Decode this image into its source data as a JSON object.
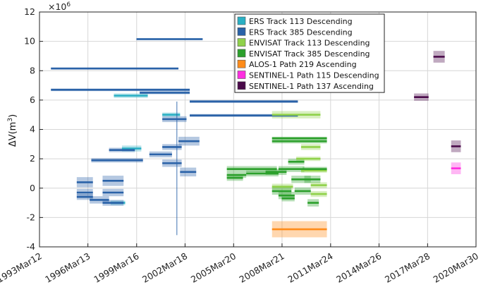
{
  "chart_data": {
    "type": "interval-scatter",
    "ylabel_main": "ΔV(m",
    "ylabel_sup": "3",
    "ylabel_close": ")",
    "exponent_prefix": "×10",
    "exponent_power": "6",
    "ylim": [
      -4000000,
      12000000
    ],
    "y_ticks": [
      -4000000,
      -2000000,
      0,
      2000000,
      4000000,
      6000000,
      8000000,
      10000000,
      12000000
    ],
    "y_tick_labels": [
      "-4",
      "-2",
      "0",
      "2",
      "4",
      "6",
      "8",
      "10",
      "12"
    ],
    "xlim": [
      1993.19,
      2020.24
    ],
    "x_ticks": [
      1993.19,
      1996.19,
      1999.21,
      2002.21,
      2005.22,
      2008.22,
      2011.23,
      2014.23,
      2017.24,
      2020.24
    ],
    "x_tick_labels": [
      "1993Mar12",
      "1996Mar13",
      "1999Mar16",
      "2002Mar18",
      "2005Mar20",
      "2008Mar21",
      "2011Mar24",
      "2014Mar26",
      "2017Mar28",
      "2020Mar30"
    ],
    "grid": true,
    "legend_position": "top-right",
    "series": [
      {
        "name": "ERS Track 113 Descending",
        "color": "#2ab0c4",
        "intervals": [
          {
            "x0": 1998.3,
            "x1": 1999.5,
            "y": 2700000,
            "band": 400000
          },
          {
            "x0": 1997.8,
            "x1": 1999.9,
            "y": 6300000,
            "band": 300000
          },
          {
            "x0": 2000.8,
            "x1": 2001.9,
            "y": 5000000,
            "band": 300000
          },
          {
            "x0": 1997.6,
            "x1": 1998.5,
            "y": -1000000,
            "band": 300000
          }
        ]
      },
      {
        "name": "ERS Track 385 Descending",
        "color": "#2a62a8",
        "intervals": [
          {
            "x0": 1993.9,
            "x1": 2001.8,
            "y": 8150000,
            "band": 150000
          },
          {
            "x0": 1999.2,
            "x1": 2003.3,
            "y": 10150000,
            "band": 150000
          },
          {
            "x0": 1993.9,
            "x1": 2002.5,
            "y": 6700000,
            "band": 180000
          },
          {
            "x0": 1999.4,
            "x1": 2002.5,
            "y": 6500000,
            "band": 200000
          },
          {
            "x0": 2002.5,
            "x1": 2009.2,
            "y": 5900000,
            "band": 200000
          },
          {
            "x0": 2002.5,
            "x1": 2009.2,
            "y": 4950000,
            "band": 200000
          },
          {
            "x0": 2000.8,
            "x1": 2002.3,
            "y": 4700000,
            "band": 400000
          },
          {
            "x0": 2001.8,
            "x1": 2003.1,
            "y": 3200000,
            "band": 600000
          },
          {
            "x0": 1996.4,
            "x1": 1999.6,
            "y": 1900000,
            "band": 300000
          },
          {
            "x0": 1997.5,
            "x1": 1999.1,
            "y": 2600000,
            "band": 300000
          },
          {
            "x0": 2000.0,
            "x1": 2001.4,
            "y": 2300000,
            "band": 400000
          },
          {
            "x0": 2000.8,
            "x1": 2002.0,
            "y": 2800000,
            "band": 400000
          },
          {
            "x0": 2000.8,
            "x1": 2002.0,
            "y": 1700000,
            "band": 500000
          },
          {
            "x0": 2001.9,
            "x1": 2002.9,
            "y": 1100000,
            "band": 600000
          },
          {
            "x0": 1995.5,
            "x1": 1996.5,
            "y": 400000,
            "band": 700000
          },
          {
            "x0": 1995.5,
            "x1": 1996.5,
            "y": -300000,
            "band": 500000
          },
          {
            "x0": 1995.5,
            "x1": 1996.5,
            "y": -600000,
            "band": 400000
          },
          {
            "x0": 1996.3,
            "x1": 1997.5,
            "y": -800000,
            "band": 500000
          },
          {
            "x0": 1997.1,
            "x1": 1998.4,
            "y": 500000,
            "band": 700000
          },
          {
            "x0": 1997.1,
            "x1": 1998.4,
            "y": -300000,
            "band": 500000
          },
          {
            "x0": 1997.1,
            "x1": 1998.4,
            "y": -1000000,
            "band": 400000
          }
        ]
      },
      {
        "name": "ENVISAT Track 113 Descending",
        "color": "#8fd14a",
        "intervals": [
          {
            "x0": 2007.6,
            "x1": 2010.6,
            "y": 5000000,
            "band": 500000
          },
          {
            "x0": 2009.4,
            "x1": 2010.6,
            "y": 2800000,
            "band": 400000
          },
          {
            "x0": 2009.1,
            "x1": 2010.6,
            "y": 2000000,
            "band": 300000
          },
          {
            "x0": 2009.4,
            "x1": 2011.0,
            "y": 1200000,
            "band": 300000
          },
          {
            "x0": 2010.0,
            "x1": 2011.0,
            "y": 200000,
            "band": 400000
          },
          {
            "x0": 2010.0,
            "x1": 2011.0,
            "y": -400000,
            "band": 400000
          },
          {
            "x0": 2007.6,
            "x1": 2008.9,
            "y": 100000,
            "band": 400000
          }
        ]
      },
      {
        "name": "ENVISAT Track 385 Descending",
        "color": "#2ca02c",
        "intervals": [
          {
            "x0": 2007.6,
            "x1": 2011.0,
            "y": 3200000,
            "band": 300000
          },
          {
            "x0": 2007.6,
            "x1": 2011.0,
            "y": 3400000,
            "band": 200000
          },
          {
            "x0": 2004.8,
            "x1": 2007.9,
            "y": 1300000,
            "band": 400000
          },
          {
            "x0": 2004.8,
            "x1": 2006.0,
            "y": 900000,
            "band": 400000
          },
          {
            "x0": 2006.0,
            "x1": 2008.0,
            "y": 1000000,
            "band": 400000
          },
          {
            "x0": 2004.8,
            "x1": 2005.8,
            "y": 700000,
            "band": 400000
          },
          {
            "x0": 2007.2,
            "x1": 2008.5,
            "y": 1100000,
            "band": 400000
          },
          {
            "x0": 2008.0,
            "x1": 2009.6,
            "y": 1300000,
            "band": 400000
          },
          {
            "x0": 2009.5,
            "x1": 2011.0,
            "y": 1300000,
            "band": 300000
          },
          {
            "x0": 2008.6,
            "x1": 2009.6,
            "y": 1800000,
            "band": 400000
          },
          {
            "x0": 2008.8,
            "x1": 2010.0,
            "y": 600000,
            "band": 500000
          },
          {
            "x0": 2009.6,
            "x1": 2010.6,
            "y": 600000,
            "band": 500000
          },
          {
            "x0": 2007.6,
            "x1": 2008.8,
            "y": -200000,
            "band": 500000
          },
          {
            "x0": 2008.0,
            "x1": 2009.0,
            "y": -500000,
            "band": 500000
          },
          {
            "x0": 2009.0,
            "x1": 2010.0,
            "y": -200000,
            "band": 500000
          },
          {
            "x0": 2009.8,
            "x1": 2010.5,
            "y": -1000000,
            "band": 500000
          },
          {
            "x0": 2008.2,
            "x1": 2009.0,
            "y": -700000,
            "band": 400000
          }
        ]
      },
      {
        "name": "ALOS-1 Path 219 Ascending",
        "color": "#ff8c1a",
        "intervals": [
          {
            "x0": 2007.6,
            "x1": 2011.0,
            "y": -2800000,
            "band": 1100000
          }
        ]
      },
      {
        "name": "SENTINEL-1 Path 115 Descending",
        "color": "#ff2ee0",
        "intervals": [
          {
            "x0": 2018.7,
            "x1": 2019.3,
            "y": 1350000,
            "band": 800000
          }
        ]
      },
      {
        "name": "SENTINEL-1 Path 137 Ascending",
        "color": "#4a0a4a",
        "intervals": [
          {
            "x0": 2016.4,
            "x1": 2017.3,
            "y": 6200000,
            "band": 500000
          },
          {
            "x0": 2017.6,
            "x1": 2018.3,
            "y": 8950000,
            "band": 800000
          },
          {
            "x0": 2018.7,
            "x1": 2019.3,
            "y": 2850000,
            "band": 800000
          }
        ]
      }
    ],
    "error_bar": {
      "x": 2001.7,
      "y0": -3200000,
      "y1": 5900000,
      "color": "#2a62a8"
    }
  }
}
